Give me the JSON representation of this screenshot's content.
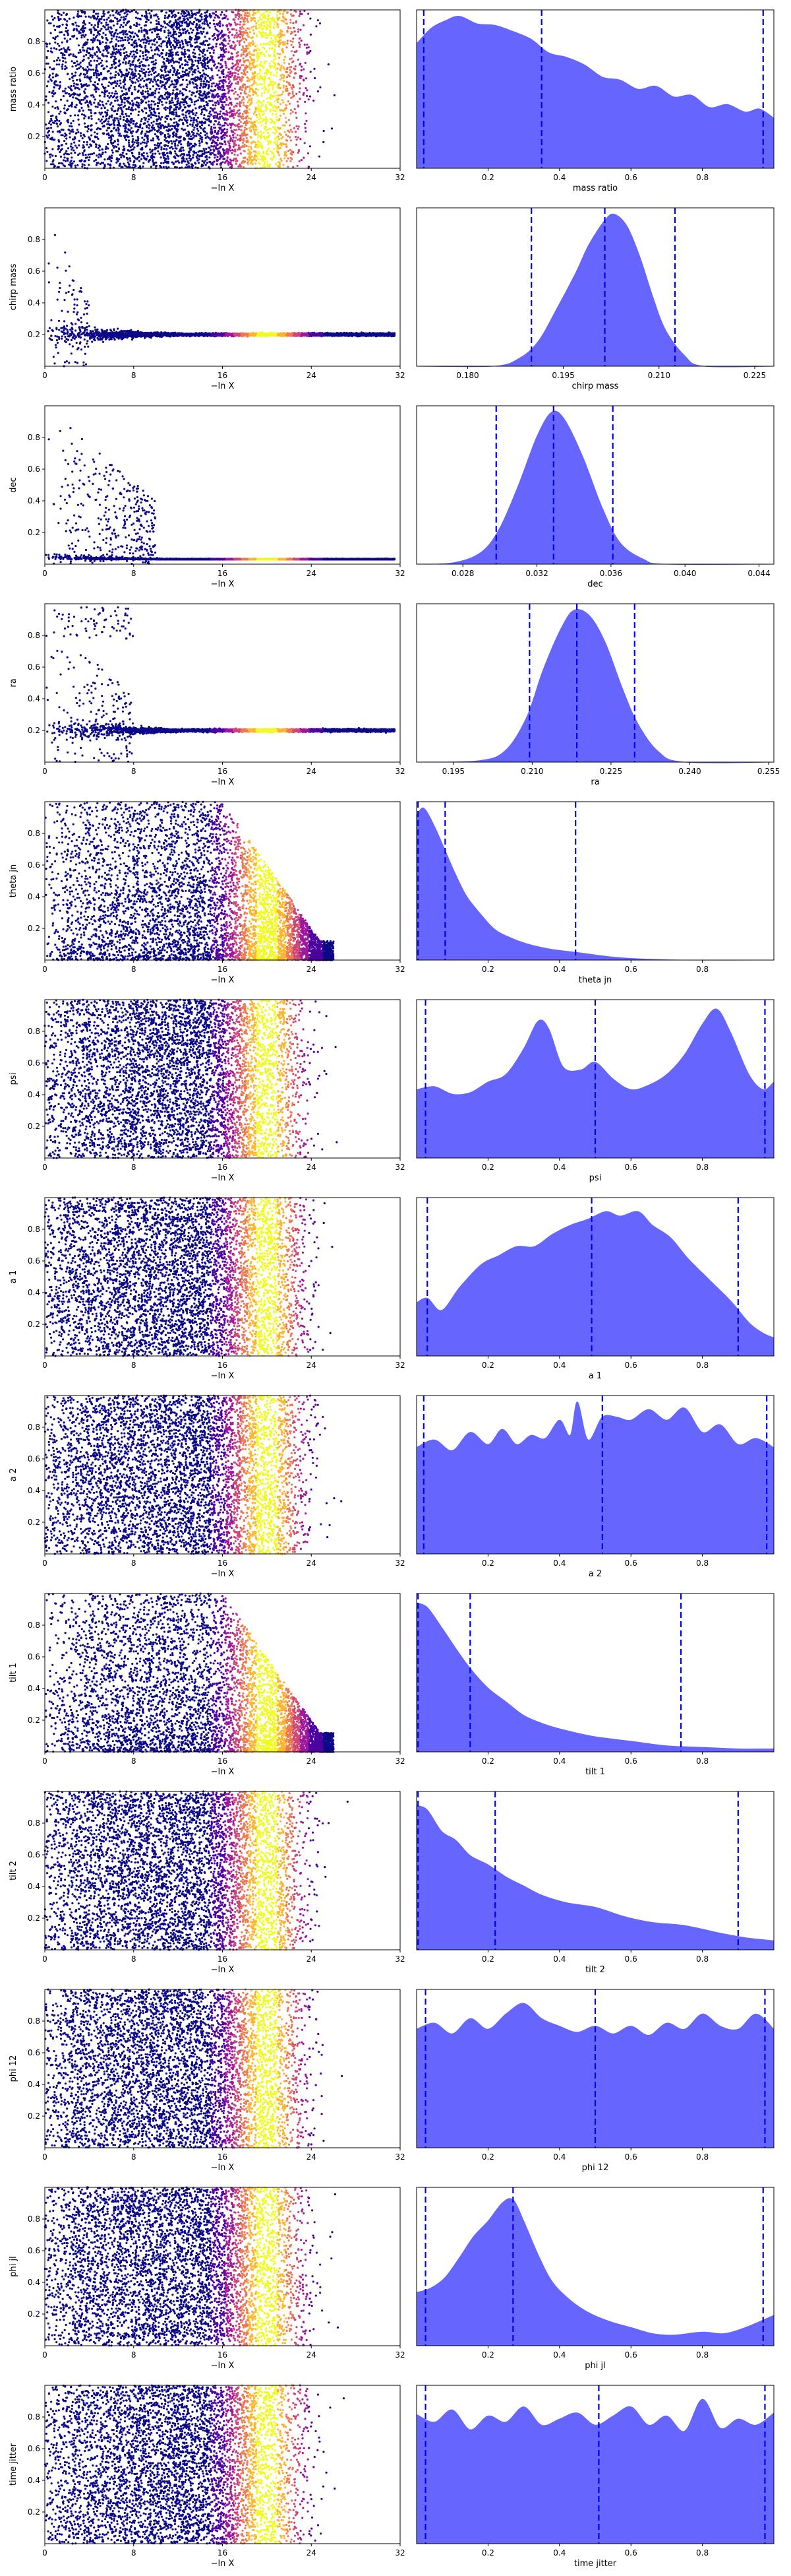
{
  "figure": {
    "scatter_xlabel": "−ln X",
    "scatter_xticks": [
      "0",
      "8",
      "16",
      "24",
      "32"
    ],
    "scatter_xlim": [
      0,
      32
    ],
    "ylim": [
      0,
      1
    ],
    "scatter_yticks": [
      "0.2",
      "0.4",
      "0.6",
      "0.8"
    ],
    "colormap": [
      "#0d0887",
      "#4c02a1",
      "#9c179e",
      "#cc4778",
      "#ed7953",
      "#fdb42f",
      "#f0f921"
    ],
    "marginal_fill_color": "#6666ff",
    "marginal_line_color": "#0000ee"
  },
  "chart_data": [
    {
      "type": "scatter",
      "name": "mass ratio",
      "param": "mass ratio",
      "ylabel": "mass ratio",
      "xlabel": "mass ratio",
      "scatter_shape": "uniform",
      "mx_min": 0.0,
      "mx_max": 1.0,
      "mx_ticks": [
        0.2,
        0.4,
        0.6,
        0.8
      ],
      "mx_tick_labels": [
        "0.2",
        "0.4",
        "0.6",
        "0.8"
      ],
      "quantiles": [
        0.02,
        0.35,
        0.97
      ],
      "density": [
        [
          0.0,
          0.82
        ],
        [
          0.04,
          0.92
        ],
        [
          0.08,
          0.97
        ],
        [
          0.12,
          1.0
        ],
        [
          0.17,
          0.95
        ],
        [
          0.22,
          0.94
        ],
        [
          0.27,
          0.9
        ],
        [
          0.32,
          0.85
        ],
        [
          0.37,
          0.76
        ],
        [
          0.42,
          0.73
        ],
        [
          0.47,
          0.68
        ],
        [
          0.52,
          0.6
        ],
        [
          0.57,
          0.58
        ],
        [
          0.62,
          0.52
        ],
        [
          0.67,
          0.54
        ],
        [
          0.72,
          0.47
        ],
        [
          0.77,
          0.48
        ],
        [
          0.82,
          0.4
        ],
        [
          0.87,
          0.42
        ],
        [
          0.92,
          0.37
        ],
        [
          0.96,
          0.39
        ],
        [
          1.0,
          0.33
        ]
      ]
    },
    {
      "type": "scatter",
      "name": "chirp mass",
      "param": "chirp mass",
      "ylabel": "chirp mass",
      "xlabel": "chirp mass",
      "scatter_shape": "converge",
      "converge_at": 0.2,
      "converge_x": 4,
      "mx_min": 0.172,
      "mx_max": 0.228,
      "mx_ticks": [
        0.18,
        0.195,
        0.21,
        0.225
      ],
      "mx_tick_labels": [
        "0.180",
        "0.195",
        "0.210",
        "0.225"
      ],
      "quantiles": [
        0.19,
        0.2015,
        0.2125
      ],
      "density": [
        [
          0.172,
          0.0
        ],
        [
          0.184,
          0.0
        ],
        [
          0.188,
          0.05
        ],
        [
          0.191,
          0.16
        ],
        [
          0.194,
          0.38
        ],
        [
          0.197,
          0.62
        ],
        [
          0.199,
          0.8
        ],
        [
          0.2015,
          0.96
        ],
        [
          0.203,
          1.0
        ],
        [
          0.205,
          0.92
        ],
        [
          0.207,
          0.72
        ],
        [
          0.209,
          0.46
        ],
        [
          0.211,
          0.24
        ],
        [
          0.214,
          0.07
        ],
        [
          0.217,
          0.0
        ],
        [
          0.228,
          0.0
        ]
      ]
    },
    {
      "type": "scatter",
      "name": "dec",
      "param": "dec",
      "ylabel": "dec",
      "xlabel": "dec",
      "scatter_shape": "converge",
      "converge_at": 0.033,
      "converge_x": 10,
      "mx_min": 0.0255,
      "mx_max": 0.0448,
      "mx_ticks": [
        0.028,
        0.032,
        0.036,
        0.04,
        0.044
      ],
      "mx_tick_labels": [
        "0.028",
        "0.032",
        "0.036",
        "0.040",
        "0.044"
      ],
      "quantiles": [
        0.0298,
        0.0329,
        0.0361
      ],
      "density": [
        [
          0.0255,
          0.0
        ],
        [
          0.0275,
          0.01
        ],
        [
          0.029,
          0.08
        ],
        [
          0.03,
          0.24
        ],
        [
          0.031,
          0.52
        ],
        [
          0.032,
          0.84
        ],
        [
          0.0328,
          1.0
        ],
        [
          0.0335,
          0.95
        ],
        [
          0.0345,
          0.7
        ],
        [
          0.0355,
          0.38
        ],
        [
          0.0365,
          0.14
        ],
        [
          0.0378,
          0.03
        ],
        [
          0.039,
          0.0
        ],
        [
          0.0448,
          0.0
        ]
      ]
    },
    {
      "type": "scatter",
      "name": "ra",
      "param": "ra",
      "ylabel": "ra",
      "xlabel": "ra",
      "scatter_shape": "converge",
      "converge_at": 0.22,
      "converge_x": 8,
      "top_band": true,
      "mx_min": 0.188,
      "mx_max": 0.256,
      "mx_ticks": [
        0.195,
        0.21,
        0.225,
        0.24,
        0.255
      ],
      "mx_tick_labels": [
        "0.195",
        "0.210",
        "0.225",
        "0.240",
        "0.255"
      ],
      "quantiles": [
        0.2095,
        0.2185,
        0.2295
      ],
      "density": [
        [
          0.188,
          0.0
        ],
        [
          0.2,
          0.01
        ],
        [
          0.205,
          0.08
        ],
        [
          0.209,
          0.3
        ],
        [
          0.212,
          0.6
        ],
        [
          0.2155,
          0.88
        ],
        [
          0.218,
          1.0
        ],
        [
          0.221,
          0.96
        ],
        [
          0.224,
          0.78
        ],
        [
          0.227,
          0.5
        ],
        [
          0.23,
          0.26
        ],
        [
          0.234,
          0.07
        ],
        [
          0.239,
          0.0
        ],
        [
          0.256,
          0.0
        ]
      ]
    },
    {
      "type": "scatter",
      "name": "theta jn",
      "param": "theta jn",
      "ylabel": "theta jn",
      "xlabel": "theta jn",
      "scatter_shape": "low",
      "mx_min": 0.0,
      "mx_max": 1.0,
      "mx_ticks": [
        0.2,
        0.4,
        0.6,
        0.8
      ],
      "mx_tick_labels": [
        "0.2",
        "0.4",
        "0.6",
        "0.8"
      ],
      "quantiles": [
        0.004,
        0.08,
        0.445
      ],
      "density": [
        [
          0.0,
          0.95
        ],
        [
          0.02,
          1.0
        ],
        [
          0.05,
          0.88
        ],
        [
          0.08,
          0.72
        ],
        [
          0.11,
          0.56
        ],
        [
          0.14,
          0.42
        ],
        [
          0.18,
          0.3
        ],
        [
          0.22,
          0.2
        ],
        [
          0.27,
          0.14
        ],
        [
          0.32,
          0.1
        ],
        [
          0.38,
          0.07
        ],
        [
          0.45,
          0.05
        ],
        [
          0.55,
          0.02
        ],
        [
          0.65,
          0.005
        ],
        [
          0.75,
          0.0
        ],
        [
          1.0,
          0.0
        ]
      ]
    },
    {
      "type": "scatter",
      "name": "psi",
      "param": "psi",
      "ylabel": "psi",
      "xlabel": "psi",
      "scatter_shape": "uniform",
      "mx_min": 0.0,
      "mx_max": 1.0,
      "mx_ticks": [
        0.2,
        0.4,
        0.6,
        0.8
      ],
      "mx_tick_labels": [
        "0.2",
        "0.4",
        "0.6",
        "0.8"
      ],
      "quantiles": [
        0.025,
        0.5,
        0.975
      ],
      "density": [
        [
          0.0,
          0.45
        ],
        [
          0.05,
          0.47
        ],
        [
          0.1,
          0.42
        ],
        [
          0.15,
          0.43
        ],
        [
          0.2,
          0.5
        ],
        [
          0.25,
          0.55
        ],
        [
          0.3,
          0.72
        ],
        [
          0.34,
          0.9
        ],
        [
          0.37,
          0.85
        ],
        [
          0.41,
          0.6
        ],
        [
          0.46,
          0.58
        ],
        [
          0.5,
          0.63
        ],
        [
          0.55,
          0.52
        ],
        [
          0.6,
          0.45
        ],
        [
          0.65,
          0.48
        ],
        [
          0.7,
          0.55
        ],
        [
          0.75,
          0.68
        ],
        [
          0.8,
          0.88
        ],
        [
          0.84,
          0.98
        ],
        [
          0.88,
          0.82
        ],
        [
          0.93,
          0.55
        ],
        [
          0.97,
          0.45
        ],
        [
          1.0,
          0.5
        ]
      ]
    },
    {
      "type": "scatter",
      "name": "a 1",
      "param": "a 1",
      "ylabel": "a 1",
      "xlabel": "a 1",
      "scatter_shape": "uniform",
      "mx_min": 0.0,
      "mx_max": 1.0,
      "mx_ticks": [
        0.2,
        0.4,
        0.6,
        0.8
      ],
      "mx_tick_labels": [
        "0.2",
        "0.4",
        "0.6",
        "0.8"
      ],
      "quantiles": [
        0.03,
        0.49,
        0.9
      ],
      "density": [
        [
          0.0,
          0.35
        ],
        [
          0.03,
          0.38
        ],
        [
          0.07,
          0.3
        ],
        [
          0.12,
          0.45
        ],
        [
          0.18,
          0.6
        ],
        [
          0.23,
          0.66
        ],
        [
          0.28,
          0.72
        ],
        [
          0.33,
          0.72
        ],
        [
          0.38,
          0.8
        ],
        [
          0.43,
          0.86
        ],
        [
          0.48,
          0.9
        ],
        [
          0.53,
          0.95
        ],
        [
          0.57,
          0.92
        ],
        [
          0.62,
          0.95
        ],
        [
          0.66,
          0.86
        ],
        [
          0.71,
          0.78
        ],
        [
          0.76,
          0.64
        ],
        [
          0.82,
          0.5
        ],
        [
          0.88,
          0.36
        ],
        [
          0.93,
          0.22
        ],
        [
          0.97,
          0.15
        ],
        [
          1.0,
          0.12
        ]
      ]
    },
    {
      "type": "scatter",
      "name": "a 2",
      "param": "a 2",
      "ylabel": "a 2",
      "xlabel": "a 2",
      "scatter_shape": "uniform",
      "mx_min": 0.0,
      "mx_max": 1.0,
      "mx_ticks": [
        0.2,
        0.4,
        0.6,
        0.8
      ],
      "mx_tick_labels": [
        "0.2",
        "0.4",
        "0.6",
        "0.8"
      ],
      "quantiles": [
        0.02,
        0.52,
        0.98
      ],
      "density": [
        [
          0.0,
          0.7
        ],
        [
          0.05,
          0.75
        ],
        [
          0.1,
          0.68
        ],
        [
          0.15,
          0.8
        ],
        [
          0.2,
          0.72
        ],
        [
          0.24,
          0.82
        ],
        [
          0.28,
          0.72
        ],
        [
          0.32,
          0.78
        ],
        [
          0.36,
          0.76
        ],
        [
          0.4,
          0.88
        ],
        [
          0.43,
          0.78
        ],
        [
          0.45,
          1.0
        ],
        [
          0.48,
          0.75
        ],
        [
          0.52,
          0.9
        ],
        [
          0.56,
          0.9
        ],
        [
          0.6,
          0.88
        ],
        [
          0.65,
          0.95
        ],
        [
          0.7,
          0.88
        ],
        [
          0.75,
          0.96
        ],
        [
          0.8,
          0.8
        ],
        [
          0.85,
          0.85
        ],
        [
          0.9,
          0.72
        ],
        [
          0.95,
          0.76
        ],
        [
          1.0,
          0.7
        ]
      ]
    },
    {
      "type": "scatter",
      "name": "tilt 1",
      "param": "tilt 1",
      "ylabel": "tilt 1",
      "xlabel": "tilt 1",
      "scatter_shape": "low",
      "mx_min": 0.0,
      "mx_max": 1.0,
      "mx_ticks": [
        0.2,
        0.4,
        0.6,
        0.8
      ],
      "mx_tick_labels": [
        "0.2",
        "0.4",
        "0.6",
        "0.8"
      ],
      "quantiles": [
        0.004,
        0.15,
        0.74
      ],
      "density": [
        [
          0.0,
          0.98
        ],
        [
          0.03,
          0.95
        ],
        [
          0.07,
          0.82
        ],
        [
          0.11,
          0.68
        ],
        [
          0.15,
          0.55
        ],
        [
          0.2,
          0.42
        ],
        [
          0.25,
          0.33
        ],
        [
          0.3,
          0.24
        ],
        [
          0.36,
          0.18
        ],
        [
          0.42,
          0.14
        ],
        [
          0.5,
          0.1
        ],
        [
          0.6,
          0.07
        ],
        [
          0.7,
          0.04
        ],
        [
          0.8,
          0.03
        ],
        [
          0.9,
          0.02
        ],
        [
          1.0,
          0.02
        ]
      ]
    },
    {
      "type": "scatter",
      "name": "tilt 2",
      "param": "tilt 2",
      "ylabel": "tilt 2",
      "xlabel": "tilt 2",
      "scatter_shape": "uniform",
      "mx_min": 0.0,
      "mx_max": 1.0,
      "mx_ticks": [
        0.2,
        0.4,
        0.6,
        0.8
      ],
      "mx_tick_labels": [
        "0.2",
        "0.4",
        "0.6",
        "0.8"
      ],
      "quantiles": [
        0.004,
        0.22,
        0.9
      ],
      "density": [
        [
          0.0,
          0.95
        ],
        [
          0.03,
          0.92
        ],
        [
          0.07,
          0.78
        ],
        [
          0.11,
          0.72
        ],
        [
          0.15,
          0.62
        ],
        [
          0.2,
          0.56
        ],
        [
          0.25,
          0.48
        ],
        [
          0.3,
          0.42
        ],
        [
          0.35,
          0.36
        ],
        [
          0.42,
          0.31
        ],
        [
          0.5,
          0.28
        ],
        [
          0.58,
          0.22
        ],
        [
          0.66,
          0.18
        ],
        [
          0.75,
          0.16
        ],
        [
          0.85,
          0.11
        ],
        [
          0.92,
          0.08
        ],
        [
          1.0,
          0.06
        ]
      ]
    },
    {
      "type": "scatter",
      "name": "phi 12",
      "param": "phi 12",
      "ylabel": "phi 12",
      "xlabel": "phi 12",
      "scatter_shape": "uniform",
      "mx_min": 0.0,
      "mx_max": 1.0,
      "mx_ticks": [
        0.2,
        0.4,
        0.6,
        0.8
      ],
      "mx_tick_labels": [
        "0.2",
        "0.4",
        "0.6",
        "0.8"
      ],
      "quantiles": [
        0.025,
        0.5,
        0.975
      ],
      "density": [
        [
          0.0,
          0.78
        ],
        [
          0.05,
          0.82
        ],
        [
          0.1,
          0.75
        ],
        [
          0.15,
          0.85
        ],
        [
          0.2,
          0.78
        ],
        [
          0.25,
          0.88
        ],
        [
          0.3,
          0.95
        ],
        [
          0.35,
          0.85
        ],
        [
          0.4,
          0.8
        ],
        [
          0.45,
          0.76
        ],
        [
          0.5,
          0.8
        ],
        [
          0.55,
          0.75
        ],
        [
          0.6,
          0.8
        ],
        [
          0.65,
          0.74
        ],
        [
          0.7,
          0.82
        ],
        [
          0.75,
          0.78
        ],
        [
          0.8,
          0.88
        ],
        [
          0.85,
          0.8
        ],
        [
          0.9,
          0.78
        ],
        [
          0.95,
          0.88
        ],
        [
          1.0,
          0.78
        ]
      ]
    },
    {
      "type": "scatter",
      "name": "phi jl",
      "param": "phi jl",
      "ylabel": "phi jl",
      "xlabel": "phi jl",
      "scatter_shape": "uniform",
      "mx_min": 0.0,
      "mx_max": 1.0,
      "mx_ticks": [
        0.2,
        0.4,
        0.6,
        0.8
      ],
      "mx_tick_labels": [
        "0.2",
        "0.4",
        "0.6",
        "0.8"
      ],
      "quantiles": [
        0.025,
        0.27,
        0.97
      ],
      "density": [
        [
          0.0,
          0.35
        ],
        [
          0.04,
          0.38
        ],
        [
          0.08,
          0.45
        ],
        [
          0.12,
          0.58
        ],
        [
          0.16,
          0.72
        ],
        [
          0.2,
          0.82
        ],
        [
          0.24,
          0.94
        ],
        [
          0.27,
          0.96
        ],
        [
          0.3,
          0.82
        ],
        [
          0.34,
          0.6
        ],
        [
          0.38,
          0.42
        ],
        [
          0.43,
          0.3
        ],
        [
          0.48,
          0.22
        ],
        [
          0.54,
          0.16
        ],
        [
          0.6,
          0.12
        ],
        [
          0.66,
          0.08
        ],
        [
          0.72,
          0.07
        ],
        [
          0.8,
          0.09
        ],
        [
          0.86,
          0.08
        ],
        [
          0.92,
          0.12
        ],
        [
          1.0,
          0.2
        ]
      ]
    },
    {
      "type": "scatter",
      "name": "time jitter",
      "param": "time jitter",
      "ylabel": "time jitter",
      "xlabel": "time jitter",
      "scatter_shape": "uniform",
      "mx_min": 0.0,
      "mx_max": 1.0,
      "mx_ticks": [
        0.2,
        0.4,
        0.6,
        0.8
      ],
      "mx_tick_labels": [
        "0.2",
        "0.4",
        "0.6",
        "0.8"
      ],
      "quantiles": [
        0.025,
        0.51,
        0.975
      ],
      "density": [
        [
          0.0,
          0.85
        ],
        [
          0.05,
          0.8
        ],
        [
          0.1,
          0.88
        ],
        [
          0.15,
          0.75
        ],
        [
          0.2,
          0.84
        ],
        [
          0.25,
          0.8
        ],
        [
          0.3,
          0.9
        ],
        [
          0.35,
          0.78
        ],
        [
          0.4,
          0.82
        ],
        [
          0.45,
          0.86
        ],
        [
          0.5,
          0.78
        ],
        [
          0.55,
          0.84
        ],
        [
          0.6,
          0.9
        ],
        [
          0.65,
          0.78
        ],
        [
          0.7,
          0.84
        ],
        [
          0.75,
          0.74
        ],
        [
          0.8,
          0.95
        ],
        [
          0.85,
          0.76
        ],
        [
          0.9,
          0.82
        ],
        [
          0.95,
          0.78
        ],
        [
          1.0,
          0.86
        ]
      ]
    }
  ]
}
